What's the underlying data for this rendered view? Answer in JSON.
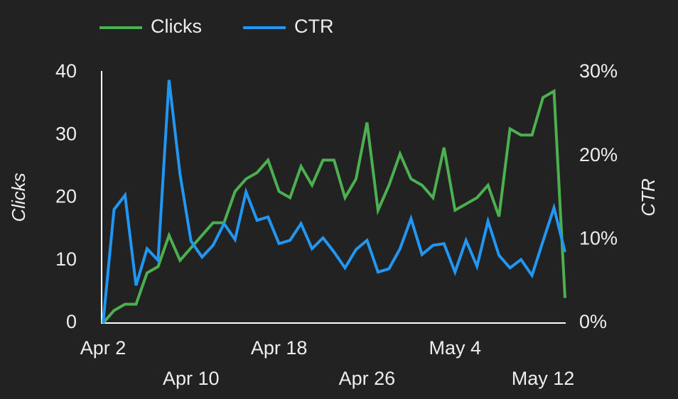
{
  "chart_data": {
    "type": "line",
    "categories": [
      "Apr 2",
      null,
      null,
      null,
      null,
      null,
      null,
      null,
      "Apr 10",
      null,
      null,
      null,
      null,
      null,
      null,
      null,
      "Apr 18",
      null,
      null,
      null,
      null,
      null,
      null,
      null,
      "Apr 26",
      null,
      null,
      null,
      null,
      null,
      null,
      null,
      "May 4",
      null,
      null,
      null,
      null,
      null,
      null,
      null,
      "May 12",
      null,
      null
    ],
    "series": [
      {
        "name": "Clicks",
        "color": "#4caf50",
        "axis": "y",
        "values": [
          0,
          2,
          3,
          3,
          8,
          9,
          14,
          10,
          12,
          14,
          16,
          16,
          21,
          23,
          24,
          26,
          21,
          20,
          25,
          22,
          26,
          26,
          20,
          23,
          32,
          18,
          22,
          27,
          23,
          22,
          20,
          28,
          18,
          19,
          20,
          22,
          17,
          31,
          30,
          30,
          36,
          37,
          4
        ]
      },
      {
        "name": "CTR",
        "color": "#2196f3",
        "axis": "y2",
        "values": [
          0,
          13.6,
          15.3,
          4.5,
          8.9,
          7.5,
          29.1,
          17.8,
          9.8,
          7.9,
          9.3,
          11.9,
          10,
          15.7,
          12.3,
          12.7,
          9.5,
          9.9,
          11.9,
          8.9,
          10.2,
          8.5,
          6.6,
          8.8,
          9.9,
          6.1,
          6.5,
          8.9,
          12.5,
          8.2,
          9.3,
          9.5,
          6.1,
          9.9,
          6.8,
          12.2,
          8.1,
          6.6,
          7.6,
          5.7,
          9.8,
          13.8,
          8.5
        ]
      }
    ],
    "ylabel": "Clicks",
    "y2label": "CTR",
    "ylim": [
      0,
      40
    ],
    "yticks": [
      0,
      10,
      20,
      30,
      40
    ],
    "y2lim": [
      0,
      30
    ],
    "y2ticks": [
      {
        "value": 0,
        "label": "0%"
      },
      {
        "value": 10,
        "label": "10%"
      },
      {
        "value": 20,
        "label": "20%"
      },
      {
        "value": 30,
        "label": "30%"
      }
    ],
    "legend": "top"
  }
}
